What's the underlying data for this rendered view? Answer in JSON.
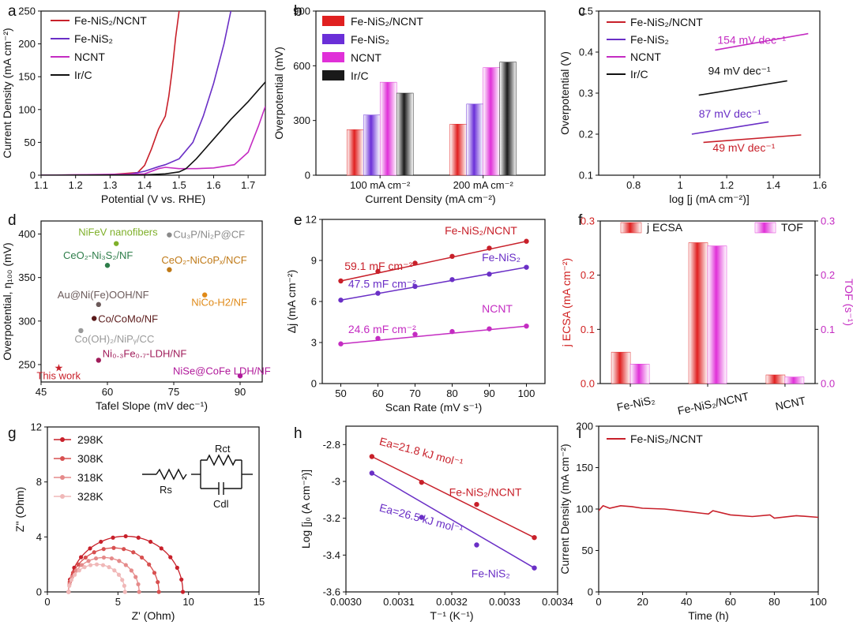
{
  "chart_data": [
    {
      "id": "a",
      "panel_label": "a",
      "type": "line",
      "xlabel": "Potential (V vs. RHE)",
      "ylabel": "Current Density (mA cm⁻²)",
      "xlim": [
        1.1,
        1.75
      ],
      "ylim": [
        0,
        250
      ],
      "xticks": [
        1.1,
        1.2,
        1.3,
        1.4,
        1.5,
        1.6,
        1.7
      ],
      "yticks": [
        0,
        50,
        100,
        150,
        200,
        250
      ],
      "legend": [
        {
          "label": "Fe-NiS₂/NCNT",
          "color": "#c8202a"
        },
        {
          "label": "Fe-NiS₂",
          "color": "#6a2fc6"
        },
        {
          "label": "NCNT",
          "color": "#c42cc2"
        },
        {
          "label": "Ir/C",
          "color": "#111111"
        }
      ],
      "series": [
        {
          "name": "Fe-NiS₂/NCNT",
          "color": "#c8202a",
          "points": [
            [
              1.1,
              0
            ],
            [
              1.3,
              1
            ],
            [
              1.38,
              4
            ],
            [
              1.4,
              15
            ],
            [
              1.42,
              40
            ],
            [
              1.44,
              70
            ],
            [
              1.46,
              90
            ],
            [
              1.47,
              120
            ],
            [
              1.48,
              160
            ],
            [
              1.49,
              210
            ],
            [
              1.5,
              250
            ]
          ]
        },
        {
          "name": "Fe-NiS₂",
          "color": "#6a2fc6",
          "points": [
            [
              1.1,
              0
            ],
            [
              1.35,
              1
            ],
            [
              1.4,
              6
            ],
            [
              1.44,
              13
            ],
            [
              1.46,
              16
            ],
            [
              1.5,
              25
            ],
            [
              1.54,
              50
            ],
            [
              1.57,
              90
            ],
            [
              1.6,
              140
            ],
            [
              1.63,
              200
            ],
            [
              1.65,
              250
            ]
          ]
        },
        {
          "name": "NCNT",
          "color": "#c42cc2",
          "points": [
            [
              1.1,
              0
            ],
            [
              1.4,
              2
            ],
            [
              1.44,
              10
            ],
            [
              1.46,
              12
            ],
            [
              1.5,
              10
            ],
            [
              1.55,
              10
            ],
            [
              1.6,
              11
            ],
            [
              1.66,
              16
            ],
            [
              1.7,
              35
            ],
            [
              1.73,
              75
            ],
            [
              1.75,
              105
            ]
          ]
        },
        {
          "name": "Ir/C",
          "color": "#111111",
          "points": [
            [
              1.1,
              0
            ],
            [
              1.4,
              0.5
            ],
            [
              1.46,
              2
            ],
            [
              1.5,
              5
            ],
            [
              1.52,
              10
            ],
            [
              1.55,
              25
            ],
            [
              1.6,
              55
            ],
            [
              1.65,
              85
            ],
            [
              1.7,
              112
            ],
            [
              1.75,
              142
            ]
          ]
        }
      ]
    },
    {
      "id": "b",
      "panel_label": "b",
      "type": "bar",
      "xlabel": "Current Density (mA cm⁻²)",
      "ylabel": "Overpotential (mV)",
      "categories": [
        "100 mA cm⁻²",
        "200 mA cm⁻²"
      ],
      "ylim": [
        0,
        900
      ],
      "yticks": [
        0,
        300,
        600,
        900
      ],
      "series": [
        {
          "name": "Fe-NiS₂/NCNT",
          "color": "#e02020",
          "values": [
            250,
            280
          ]
        },
        {
          "name": "Fe-NiS₂",
          "color": "#6a2fd8",
          "values": [
            330,
            390
          ]
        },
        {
          "name": "NCNT",
          "color": "#e030d8",
          "values": [
            510,
            590
          ]
        },
        {
          "name": "Ir/C",
          "color": "#1a1a1a",
          "values": [
            450,
            620
          ]
        }
      ]
    },
    {
      "id": "c",
      "panel_label": "c",
      "type": "line",
      "xlabel": "log [j (mA cm⁻²)]",
      "ylabel": "Overpotential (V)",
      "xlim": [
        0.65,
        1.6
      ],
      "ylim": [
        0.1,
        0.5
      ],
      "xticks": [
        0.8,
        1.0,
        1.2,
        1.4,
        1.6
      ],
      "yticks": [
        0.1,
        0.2,
        0.3,
        0.4,
        0.5
      ],
      "legend": [
        {
          "label": "Fe-NiS₂/NCNT",
          "color": "#c8202a"
        },
        {
          "label": "Fe-NiS₂",
          "color": "#6a2fc6"
        },
        {
          "label": "NCNT",
          "color": "#c42cc2"
        },
        {
          "label": "Ir/C",
          "color": "#111111"
        }
      ],
      "series": [
        {
          "name": "NCNT",
          "color": "#c42cc2",
          "points": [
            [
              1.15,
              0.405
            ],
            [
              1.55,
              0.445
            ]
          ],
          "annotation": "154 mV dec⁻¹",
          "ann_at": [
            1.16,
            0.42
          ]
        },
        {
          "name": "Ir/C",
          "color": "#111111",
          "points": [
            [
              1.08,
              0.295
            ],
            [
              1.46,
              0.33
            ]
          ],
          "annotation": "94 mV dec⁻¹",
          "ann_at": [
            1.12,
            0.345
          ]
        },
        {
          "name": "Fe-NiS₂",
          "color": "#6a2fc6",
          "points": [
            [
              1.05,
              0.2
            ],
            [
              1.38,
              0.23
            ]
          ],
          "annotation": "87 mV dec⁻¹",
          "ann_at": [
            1.08,
            0.24
          ]
        },
        {
          "name": "Fe-NiS₂/NCNT",
          "color": "#c8202a",
          "points": [
            [
              1.1,
              0.18
            ],
            [
              1.52,
              0.198
            ]
          ],
          "annotation": "49 mV dec⁻¹",
          "ann_at": [
            1.14,
            0.158
          ]
        }
      ]
    },
    {
      "id": "d",
      "panel_label": "d",
      "type": "scatter",
      "xlabel": "Tafel Slope (mV dec⁻¹)",
      "ylabel": "Overpotential, η₁₀₀ (mV)",
      "xlim": [
        45,
        95
      ],
      "ylim": [
        230,
        415
      ],
      "xticks": [
        45,
        60,
        75,
        90
      ],
      "yticks": [
        250,
        300,
        350,
        400
      ],
      "points": [
        {
          "label": "This work",
          "x": 49,
          "y": 247,
          "color": "#c8202a",
          "marker": "star",
          "ldx": -28,
          "ldy": 15
        },
        {
          "label": "NiFeV nanofibers",
          "x": 62,
          "y": 389,
          "color": "#7fb02a",
          "ldx": -48,
          "ldy": -10
        },
        {
          "label": "Cu₃P/Ni₂P@CF",
          "x": 74,
          "y": 399,
          "color": "#8a8a8a",
          "ldx": 5,
          "ldy": 4
        },
        {
          "label": "CeO₂-Ni₃S₂/NF",
          "x": 60,
          "y": 364,
          "color": "#2e7d4a",
          "ldx": -56,
          "ldy": -8
        },
        {
          "label": "CeO₂-NiCoPₓ/NCF",
          "x": 74,
          "y": 359,
          "color": "#c07a18",
          "ldx": -10,
          "ldy": -8
        },
        {
          "label": "Au@Ni(Fe)OOH/NF",
          "x": 58,
          "y": 319,
          "color": "#6b5a5a",
          "ldx": -52,
          "ldy": -8
        },
        {
          "label": "NiCo-H2/NF",
          "x": 82,
          "y": 330,
          "color": "#e08a18",
          "ldx": -17,
          "ldy": 14
        },
        {
          "label": "Co/CoMo/NF",
          "x": 57,
          "y": 303,
          "color": "#5a1a1a",
          "ldx": 5,
          "ldy": 5
        },
        {
          "label": "Co(OH)₂/NiPᵧ/CC",
          "x": 54,
          "y": 289,
          "color": "#9a9a9a",
          "ldx": -8,
          "ldy": 15
        },
        {
          "label": "Ni₀.₃Fe₀.₇-LDH/NF",
          "x": 58,
          "y": 255,
          "color": "#a01c5a",
          "ldx": 5,
          "ldy": -4
        },
        {
          "label": "NiSe@CoFe LDH/NF",
          "x": 90,
          "y": 237,
          "color": "#b0189a",
          "ldx": -85,
          "ldy": -2
        }
      ]
    },
    {
      "id": "e",
      "panel_label": "e",
      "type": "scatter",
      "xlabel": "Scan Rate (mV s⁻¹)",
      "ylabel": "Δj (mA cm⁻²)",
      "xlim": [
        45,
        105
      ],
      "ylim": [
        0,
        12
      ],
      "xticks": [
        50,
        60,
        70,
        80,
        90,
        100
      ],
      "yticks": [
        0,
        3,
        6,
        9,
        12
      ],
      "x": [
        50,
        60,
        70,
        80,
        90,
        100
      ],
      "series": [
        {
          "name": "Fe-NiS₂/NCNT",
          "color": "#c8202a",
          "values": [
            7.5,
            8.2,
            8.8,
            9.3,
            9.9,
            10.4
          ],
          "annotation": "59.1 mF cm⁻²",
          "ann_at": [
            51,
            8.3
          ],
          "name_at": [
            78,
            10.9
          ]
        },
        {
          "name": "Fe-NiS₂",
          "color": "#6a2fc6",
          "values": [
            6.1,
            6.6,
            7.1,
            7.6,
            8.0,
            8.5
          ],
          "annotation": "47.5 mF cm⁻²",
          "ann_at": [
            52,
            7.0
          ],
          "name_at": [
            88,
            8.95
          ]
        },
        {
          "name": "NCNT",
          "color": "#c42cc2",
          "values": [
            2.9,
            3.3,
            3.6,
            3.8,
            4.0,
            4.2
          ],
          "annotation": "24.6 mF cm⁻²",
          "ann_at": [
            52,
            3.7
          ],
          "name_at": [
            88,
            5.2
          ]
        }
      ]
    },
    {
      "id": "f",
      "panel_label": "f",
      "type": "bar",
      "xlabel": "",
      "ylabel": "j ECSA (mA cm⁻²)",
      "y2label": "TOF (s⁻¹)",
      "categories": [
        "Fe-NiS₂",
        "Fe-NiS₂/NCNT",
        "NCNT"
      ],
      "ylim": [
        0,
        0.3
      ],
      "yticks": [
        0.0,
        0.1,
        0.2,
        0.3
      ],
      "y2lim": [
        0,
        0.3
      ],
      "y2ticks": [
        0.0,
        0.1,
        0.2,
        0.3
      ],
      "series": [
        {
          "name": "j ECSA",
          "color": "#e02020",
          "values": [
            0.058,
            0.26,
            0.016
          ]
        },
        {
          "name": "TOF",
          "color": "#e030d8",
          "values": [
            0.036,
            0.254,
            0.012
          ]
        }
      ]
    },
    {
      "id": "g",
      "panel_label": "g",
      "type": "scatter",
      "xlabel": "Z' (Ohm)",
      "ylabel": "Z'' (Ohm)",
      "xlim": [
        0,
        15
      ],
      "ylim": [
        0,
        12
      ],
      "xticks": [
        0,
        5,
        10,
        15
      ],
      "yticks": [
        0,
        4,
        8,
        12
      ],
      "circuit_labels": {
        "rs": "Rs",
        "rct": "Rct",
        "cdl": "Cdl"
      },
      "series": [
        {
          "name": "298K",
          "color": "#c8202a",
          "rs": 1.5,
          "rct": 8.1
        },
        {
          "name": "308K",
          "color": "#d85050",
          "rs": 1.5,
          "rct": 6.4
        },
        {
          "name": "318K",
          "color": "#e58a8a",
          "rs": 1.5,
          "rct": 5.0
        },
        {
          "name": "328K",
          "color": "#f0b8b8",
          "rs": 1.5,
          "rct": 4.0
        }
      ]
    },
    {
      "id": "h",
      "panel_label": "h",
      "type": "scatter",
      "xlabel": "T⁻¹ (K⁻¹)",
      "ylabel": "Log [j₀ (A cm⁻²)]",
      "xlim": [
        0.003,
        0.0034
      ],
      "ylim": [
        -3.6,
        -2.7
      ],
      "xticks": [
        0.003,
        0.0031,
        0.0032,
        0.0033,
        0.0034
      ],
      "xtick_labels": [
        "0.0030",
        "0.0031",
        "0.0032",
        "0.0033",
        "0.0034"
      ],
      "yticks": [
        -3.6,
        -3.4,
        -3.2,
        -3.0,
        -2.8
      ],
      "x": [
        0.003049,
        0.003143,
        0.003247,
        0.003356
      ],
      "series": [
        {
          "name": "Fe-NiS₂/NCNT",
          "color": "#c8202a",
          "values": [
            -2.865,
            -3.005,
            -3.125,
            -3.305
          ],
          "annotation": "Ea=21.8 kJ mol⁻¹",
          "ann_at": [
            0.003062,
            -2.8
          ],
          "name_at": [
            0.003195,
            -3.08
          ]
        },
        {
          "name": "Fe-NiS₂",
          "color": "#6a2fc6",
          "values": [
            -2.955,
            -3.195,
            -3.345,
            -3.47
          ],
          "annotation": "Ea=26.5 kJ mol⁻¹",
          "ann_at": [
            0.003062,
            -3.16
          ],
          "name_at": [
            0.003237,
            -3.52
          ]
        }
      ]
    },
    {
      "id": "i",
      "panel_label": "i",
      "type": "line",
      "xlabel": "Time (h)",
      "ylabel": "Current Density (mA cm⁻²)",
      "xlim": [
        0,
        100
      ],
      "ylim": [
        0,
        200
      ],
      "xticks": [
        0,
        20,
        40,
        60,
        80,
        100
      ],
      "yticks": [
        0,
        50,
        100,
        150,
        200
      ],
      "legend": [
        {
          "label": "Fe-NiS₂/NCNT",
          "color": "#c8202a"
        }
      ],
      "series": [
        {
          "name": "Fe-NiS₂/NCNT",
          "color": "#c8202a",
          "points": [
            [
              0,
              98
            ],
            [
              2,
              104
            ],
            [
              5,
              101
            ],
            [
              10,
              104
            ],
            [
              15,
              103
            ],
            [
              20,
              101
            ],
            [
              30,
              100
            ],
            [
              40,
              97
            ],
            [
              50,
              94
            ],
            [
              52,
              98
            ],
            [
              60,
              93
            ],
            [
              70,
              91
            ],
            [
              78,
              93
            ],
            [
              80,
              89
            ],
            [
              90,
              92
            ],
            [
              100,
              90
            ]
          ]
        }
      ]
    }
  ]
}
